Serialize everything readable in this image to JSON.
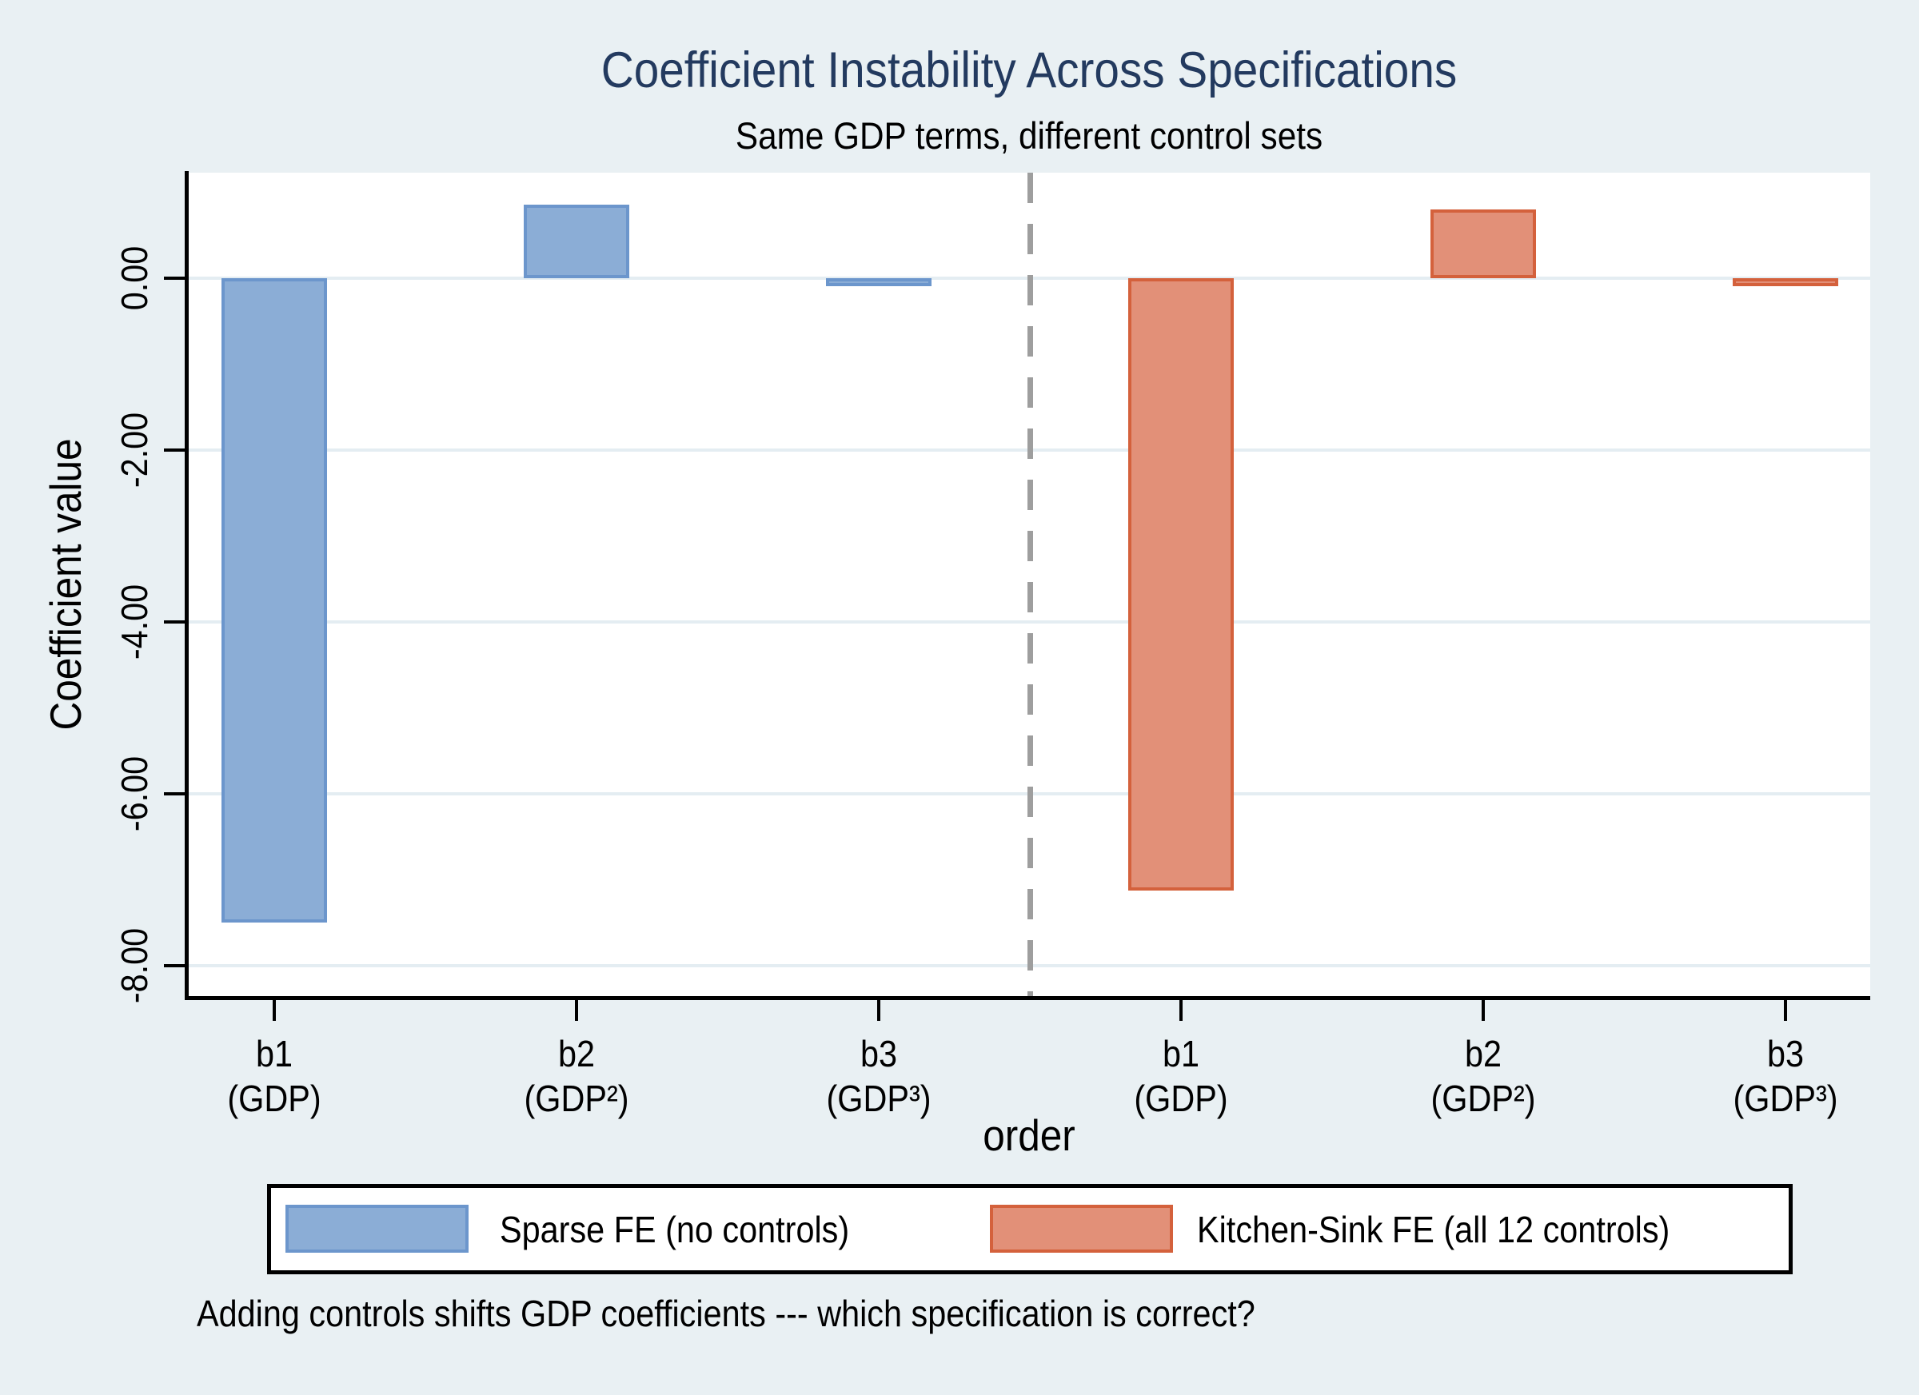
{
  "chart_data": {
    "type": "bar",
    "title": "Coefficient Instability Across Specifications",
    "subtitle": "Same GDP terms, different control sets",
    "ylabel": "Coefficient value",
    "xlabel": "order",
    "note": "Adding controls shifts GDP coefficients --- which specification is correct?",
    "ylim": [
      -8.35,
      1.23
    ],
    "grid": true,
    "legend_position": "bottom",
    "yticks": [
      {
        "value": 0,
        "label": "0.00"
      },
      {
        "value": -2,
        "label": "-2.00"
      },
      {
        "value": -4,
        "label": "-4.00"
      },
      {
        "value": -6,
        "label": "-6.00"
      },
      {
        "value": -8,
        "label": "-8.00"
      }
    ],
    "series": [
      {
        "name": "Sparse FE (no controls)",
        "fill": "#8badd6",
        "stroke": "#6c96cc",
        "bars": [
          {
            "category": "b1",
            "category_sub": "(GDP)",
            "value": -7.49
          },
          {
            "category": "b2",
            "category_sub": "(GDP²)",
            "value": 0.86
          },
          {
            "category": "b3",
            "category_sub": "(GDP³)",
            "value": -0.03
          }
        ]
      },
      {
        "name": "Kitchen-Sink FE (all 12 controls)",
        "fill": "#e29078",
        "stroke": "#d4613c",
        "bars": [
          {
            "category": "b1",
            "category_sub": "(GDP)",
            "value": -7.12
          },
          {
            "category": "b2",
            "category_sub": "(GDP²)",
            "value": 0.8
          },
          {
            "category": "b3",
            "category_sub": "(GDP³)",
            "value": -0.03
          }
        ]
      }
    ],
    "divider": {
      "style": "dashed",
      "color": "#9e9e9e",
      "position": "between-groups"
    },
    "colors": {
      "background": "#e9f0f3",
      "plot_background": "#ffffff",
      "title": "#233a5f",
      "gridline": "#e4edf2",
      "axis": "#000000"
    }
  }
}
